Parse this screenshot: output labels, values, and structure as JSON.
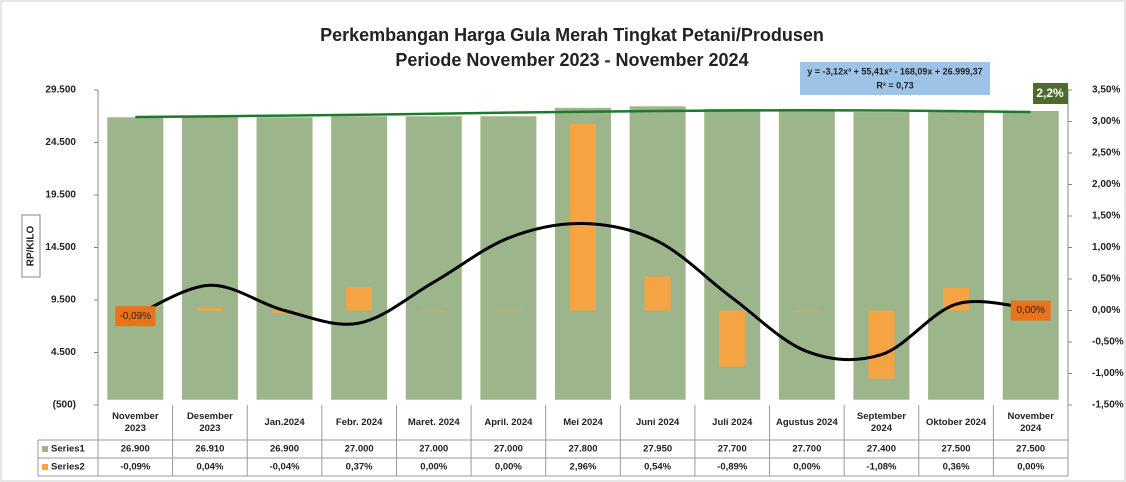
{
  "chart_data": {
    "type": "bar",
    "title": [
      "Perkembangan Harga Gula Merah  Tingkat Petani/Produsen",
      "Periode November 2023 - November 2024"
    ],
    "ylabel": "RP/KILO",
    "categories": [
      [
        "November",
        "2023"
      ],
      [
        "Desember",
        "2023"
      ],
      [
        "Jan.2024"
      ],
      [
        "Febr. 2024"
      ],
      [
        "Maret. 2024"
      ],
      [
        "April. 2024"
      ],
      [
        "Mei 2024"
      ],
      [
        "Juni 2024"
      ],
      [
        "Juli 2024"
      ],
      [
        "Agustus 2024"
      ],
      [
        "September",
        "2024"
      ],
      [
        "Oktober 2024"
      ],
      [
        "November",
        "2024"
      ]
    ],
    "series": [
      {
        "name": "Series1",
        "color": "#9db58a",
        "values": [
          26900,
          26910,
          26900,
          27000,
          27000,
          27000,
          27800,
          27950,
          27700,
          27700,
          27400,
          27500,
          27500
        ],
        "value_labels": [
          "26.900",
          "26.910",
          "26.900",
          "27.000",
          "27.000",
          "27.000",
          "27.800",
          "27.950",
          "27.700",
          "27.700",
          "27.400",
          "27.500",
          "27.500"
        ]
      },
      {
        "name": "Series2",
        "color": "#f5a444",
        "axis": "y2",
        "values": [
          -0.09,
          0.04,
          -0.04,
          0.37,
          0,
          0,
          2.96,
          0.54,
          -0.89,
          0,
          -1.08,
          0.36,
          0
        ],
        "value_labels": [
          "-0,09%",
          "0,04%",
          "-0,04%",
          "0,37%",
          "0,00%",
          "0,00%",
          "2,96%",
          "0,54%",
          "-0,89%",
          "0,00%",
          "-1,08%",
          "0,36%",
          "0,00%"
        ]
      }
    ],
    "trendline": {
      "color": "#1e7a2a",
      "values": [
        26930,
        26990,
        27060,
        27140,
        27240,
        27340,
        27430,
        27500,
        27550,
        27570,
        27550,
        27490,
        27400
      ]
    },
    "trendline2": {
      "color": "#000000",
      "axis": "y2",
      "values": [
        -0.08,
        0.4,
        0,
        -0.2,
        0.45,
        1.15,
        1.38,
        1.1,
        0.2,
        -0.65,
        -0.7,
        0.1,
        0.03
      ]
    },
    "equation": [
      "y = -3,12x³ + 55,41x² - 168,09x + 26.999,37",
      "R² = 0,73"
    ],
    "annotation": "2,2%",
    "ylim": [
      -500,
      29500
    ],
    "yticks": [
      {
        "value": -500,
        "label": "(500)"
      },
      {
        "value": 4500,
        "label": "4.500"
      },
      {
        "value": 9500,
        "label": "9.500"
      },
      {
        "value": 14500,
        "label": "14.500"
      },
      {
        "value": 19500,
        "label": "19.500"
      },
      {
        "value": 24500,
        "label": "24.500"
      },
      {
        "value": 29500,
        "label": "29.500"
      }
    ],
    "y2lim": [
      -1.5,
      3.5
    ],
    "y2ticks": [
      {
        "value": -1.5,
        "label": "-1,50%"
      },
      {
        "value": -1,
        "label": "-1,00%"
      },
      {
        "value": -0.5,
        "label": "-0,50%"
      },
      {
        "value": 0,
        "label": "0,00%"
      },
      {
        "value": 0.5,
        "label": "0,50%"
      },
      {
        "value": 1,
        "label": "1,00%"
      },
      {
        "value": 1.5,
        "label": "1,50%"
      },
      {
        "value": 2,
        "label": "2,00%"
      },
      {
        "value": 2.5,
        "label": "2,50%"
      },
      {
        "value": 3,
        "label": "3,00%"
      },
      {
        "value": 3.5,
        "label": "3,50%"
      }
    ]
  }
}
